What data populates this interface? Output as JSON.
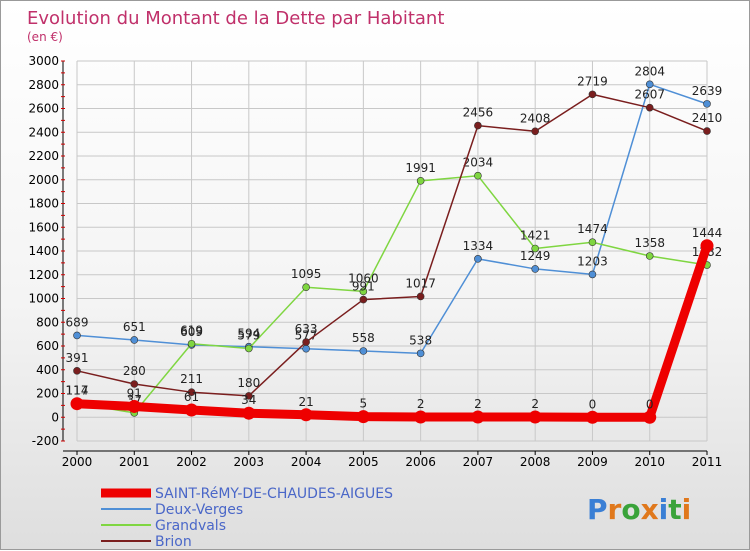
{
  "chart_data": {
    "type": "line",
    "title": "Evolution du Montant de la Dette par Habitant",
    "subtitle": "(en €)",
    "xlabel": "",
    "ylabel": "",
    "ylim": [
      -200,
      3000
    ],
    "y_ticks": [
      "-200",
      "0",
      "200",
      "400",
      "600",
      "800",
      "1000",
      "1200",
      "1400",
      "1600",
      "1800",
      "2000",
      "2200",
      "2400",
      "2600",
      "2800",
      "3000"
    ],
    "categories": [
      "2000",
      "2001",
      "2002",
      "2003",
      "2004",
      "2005",
      "2006",
      "2007",
      "2008",
      "2009",
      "2010",
      "2011"
    ],
    "series": [
      {
        "name": "SAINT-RéMY-DE-CHAUDES-AIGUES",
        "color": "#ee0000",
        "values": [
          114,
          91,
          61,
          34,
          21,
          5,
          2,
          2,
          2,
          0,
          0,
          1444
        ],
        "labels": [
          "114",
          "91",
          "61",
          "34",
          "21",
          "5",
          "2",
          "2",
          "2",
          "0",
          "0",
          "1444"
        ]
      },
      {
        "name": "Deux-Verges",
        "color": "#4f8fd6",
        "values": [
          689,
          651,
          609,
          594,
          577,
          558,
          538,
          1334,
          1249,
          1203,
          2804,
          2639
        ],
        "labels": [
          "689",
          "651",
          "609",
          "594",
          "577",
          "558",
          "538",
          "1334",
          "1249",
          "1203",
          "2804",
          "2639"
        ]
      },
      {
        "name": "Grandvals",
        "color": "#7fd641",
        "values": [
          117,
          37,
          619,
          579,
          1095,
          1060,
          1991,
          2034,
          1421,
          1474,
          1358,
          1282
        ],
        "labels": [
          "117",
          "37",
          "619",
          "579",
          "1095",
          "1060",
          "1991",
          "2034",
          "1421",
          "1474",
          "1358",
          "1282"
        ]
      },
      {
        "name": "Brion",
        "color": "#7a1e1e",
        "values": [
          391,
          280,
          211,
          180,
          633,
          991,
          1017,
          2456,
          2408,
          2719,
          2607,
          2410
        ],
        "labels": [
          "391",
          "280",
          "211",
          "180",
          "633",
          "991",
          "1017",
          "2456",
          "2408",
          "2719",
          "2607",
          "2410"
        ]
      }
    ]
  },
  "logo": {
    "text": "Proxiti",
    "colors": [
      "#3a7fd5",
      "#e0781c",
      "#3aa33a",
      "#e0781c",
      "#3a7fd5",
      "#3aa33a",
      "#e0781c"
    ]
  }
}
